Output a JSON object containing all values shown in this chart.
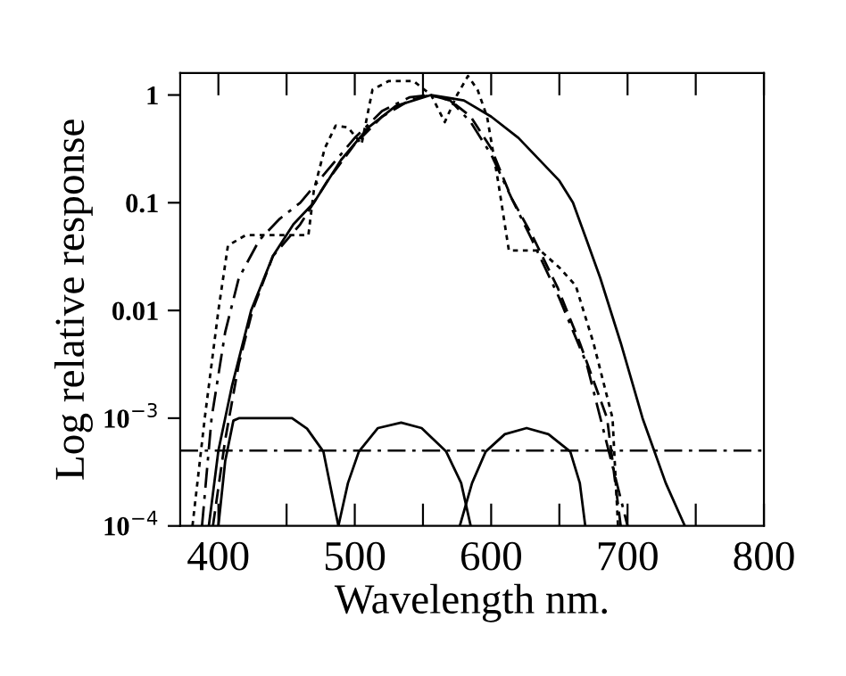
{
  "chart_data": {
    "type": "line",
    "xlabel": "Wavelength nm.",
    "ylabel": "Log relative response",
    "log": "y",
    "legend": false,
    "grid": false,
    "marker": "none",
    "xlim": [
      372,
      800
    ],
    "xticks": [
      400,
      {
        "value": 450,
        "label": null
      },
      500,
      {
        "value": 550,
        "label": null
      },
      600,
      {
        "value": 650,
        "label": null
      },
      700,
      {
        "value": 750,
        "label": null
      },
      800
    ],
    "ylim": [
      0.0001,
      1.6
    ],
    "yticks": [
      {
        "value": 0.0001,
        "label": "10$^{−4}$"
      },
      {
        "value": 0.001,
        "label": "10$^{−3}$"
      },
      0.01,
      0.1,
      1
    ],
    "ref_lines": [
      {
        "axis": "y",
        "value": 0.0005,
        "color": "#000000",
        "line_style": "dashdot"
      }
    ],
    "series": [
      {
        "color": "#000000",
        "line_style": "solid",
        "x": [
          393,
          400,
          410,
          424,
          440,
          455,
          470,
          490,
          510,
          530,
          556,
          580,
          600,
          620,
          650,
          660,
          670,
          680,
          695,
          711,
          728,
          742
        ],
        "values": [
          0.0001,
          0.0005,
          0.002,
          0.01,
          0.032,
          0.063,
          0.1,
          0.25,
          0.5,
          0.79,
          1,
          0.89,
          0.63,
          0.4,
          0.16,
          0.1,
          0.045,
          0.02,
          0.005,
          0.001,
          0.00025,
          0.0001
        ]
      },
      {
        "color": "#000000",
        "line_style": "dashed",
        "x": [
          396,
          405,
          415,
          425,
          440,
          460,
          480,
          500,
          520,
          540,
          555,
          570,
          585,
          600,
          615,
          630,
          649,
          665,
          685,
          695
        ],
        "values": [
          0.0001,
          0.00063,
          0.0032,
          0.01,
          0.032,
          0.063,
          0.16,
          0.35,
          0.63,
          0.89,
          1,
          0.89,
          0.63,
          0.32,
          0.11,
          0.05,
          0.016,
          0.005,
          0.001,
          0.0001
        ]
      },
      {
        "color": "#000000",
        "line_style": "dashdot",
        "x": [
          388,
          395,
          405,
          415,
          430,
          445,
          460,
          480,
          500,
          520,
          540,
          555,
          570,
          585,
          600,
          615,
          630,
          650,
          670,
          690,
          700
        ],
        "values": [
          0.0001,
          0.001,
          0.0063,
          0.02,
          0.045,
          0.071,
          0.1,
          0.2,
          0.4,
          0.71,
          0.95,
          1,
          0.89,
          0.56,
          0.28,
          0.11,
          0.045,
          0.013,
          0.0032,
          0.00032,
          0.0001
        ]
      },
      {
        "color": "#000000",
        "line_style": "dotted",
        "x": [
          381,
          390,
          400,
          407,
          420,
          440,
          460,
          466,
          470,
          478,
          486,
          495,
          505,
          513,
          525,
          543,
          556,
          566,
          575,
          583,
          590,
          597,
          605,
          613,
          625,
          636,
          650,
          662,
          675,
          689,
          693
        ],
        "values": [
          0.0001,
          0.001,
          0.01,
          0.04,
          0.05,
          0.05,
          0.05,
          0.05,
          0.13,
          0.32,
          0.52,
          0.5,
          0.35,
          1.12,
          1.35,
          1.35,
          1,
          0.56,
          1,
          1.5,
          1.12,
          0.63,
          0.16,
          0.036,
          0.036,
          0.036,
          0.025,
          0.017,
          0.005,
          0.001,
          0.0001
        ]
      },
      {
        "color": "#000000",
        "line_style": "solid",
        "x": [
          400,
          405,
          411,
          415,
          454,
          465,
          477,
          488
        ],
        "values": [
          0.0001,
          0.0004,
          0.00095,
          0.001,
          0.001,
          0.0008,
          0.00049,
          0.0001
        ]
      },
      {
        "color": "#000000",
        "line_style": "solid",
        "x": [
          488,
          495,
          503,
          517,
          534,
          549,
          567,
          578,
          585
        ],
        "values": [
          0.0001,
          0.00025,
          0.00049,
          0.00081,
          0.00091,
          0.00081,
          0.00049,
          0.00025,
          0.0001
        ]
      },
      {
        "color": "#000000",
        "line_style": "solid",
        "x": [
          577,
          586,
          596,
          610,
          626,
          642,
          658,
          665,
          669
        ],
        "values": [
          0.0001,
          0.00025,
          0.00049,
          0.00071,
          0.00081,
          0.00071,
          0.00049,
          0.00025,
          0.0001
        ]
      }
    ]
  }
}
